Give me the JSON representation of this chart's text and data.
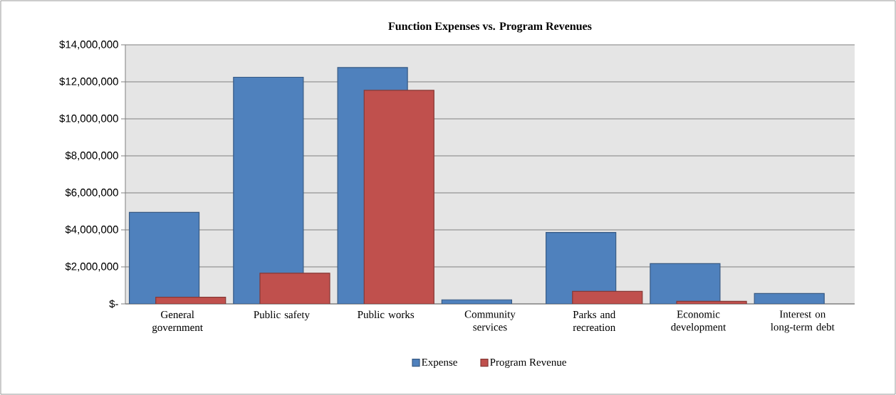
{
  "chart_data": {
    "type": "bar",
    "title": "Function Expenses vs. Program Revenues",
    "categories": [
      "General government",
      "Public safety",
      "Public works",
      "Community services",
      "Parks and recreation",
      "Economic development",
      "Interest on long-term debt"
    ],
    "series": [
      {
        "name": "Expense",
        "color": "#4f81bd",
        "values": [
          4950000,
          12250000,
          12770000,
          220000,
          3860000,
          2180000,
          560000
        ]
      },
      {
        "name": "Program Revenue",
        "color": "#c0504d",
        "values": [
          360000,
          1660000,
          11540000,
          null,
          680000,
          140000,
          null
        ]
      }
    ],
    "ylim": [
      0,
      14000000
    ],
    "yticks": [
      {
        "value": 0,
        "label": "$-"
      },
      {
        "value": 2000000,
        "label": "$2,000,000"
      },
      {
        "value": 4000000,
        "label": "$4,000,000"
      },
      {
        "value": 6000000,
        "label": "$6,000,000"
      },
      {
        "value": 8000000,
        "label": "$8,000,000"
      },
      {
        "value": 10000000,
        "label": "$10,000,000"
      },
      {
        "value": 12000000,
        "label": "$12,000,000"
      },
      {
        "value": 14000000,
        "label": "$14,000,000"
      }
    ],
    "grid": "y",
    "legend": "bottom"
  }
}
